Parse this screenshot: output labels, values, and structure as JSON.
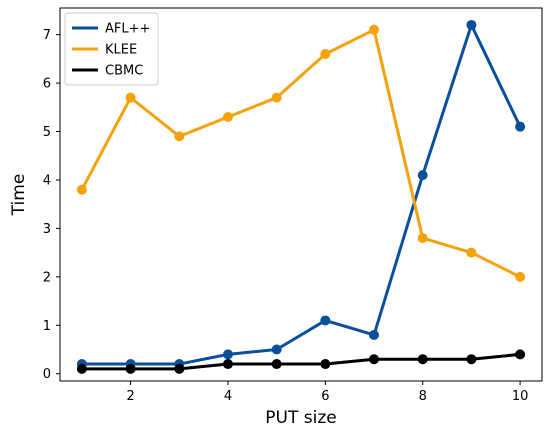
{
  "chart_data": {
    "type": "line",
    "title": "",
    "xlabel": "PUT size",
    "ylabel": "Time",
    "xlim": [
      0.55,
      10.45
    ],
    "ylim": [
      -0.15,
      7.55
    ],
    "x_ticks": [
      2,
      4,
      6,
      8,
      10
    ],
    "y_ticks": [
      0,
      1,
      2,
      3,
      4,
      5,
      6,
      7
    ],
    "grid": false,
    "legend_position": "top-left",
    "x": [
      1,
      2,
      3,
      4,
      5,
      6,
      7,
      8,
      9,
      10
    ],
    "series": [
      {
        "name": "AFL++",
        "color": "#0a4f9c",
        "values": [
          0.2,
          0.2,
          0.2,
          0.4,
          0.5,
          1.1,
          0.8,
          4.1,
          7.2,
          5.1
        ]
      },
      {
        "name": "KLEE",
        "color": "#f5a20a",
        "values": [
          3.8,
          5.7,
          4.9,
          5.3,
          5.7,
          6.6,
          7.1,
          2.8,
          2.5,
          2.0
        ]
      },
      {
        "name": "CBMC",
        "color": "#000000",
        "values": [
          0.1,
          0.1,
          0.1,
          0.2,
          0.2,
          0.2,
          0.3,
          0.3,
          0.3,
          0.4
        ]
      }
    ]
  }
}
